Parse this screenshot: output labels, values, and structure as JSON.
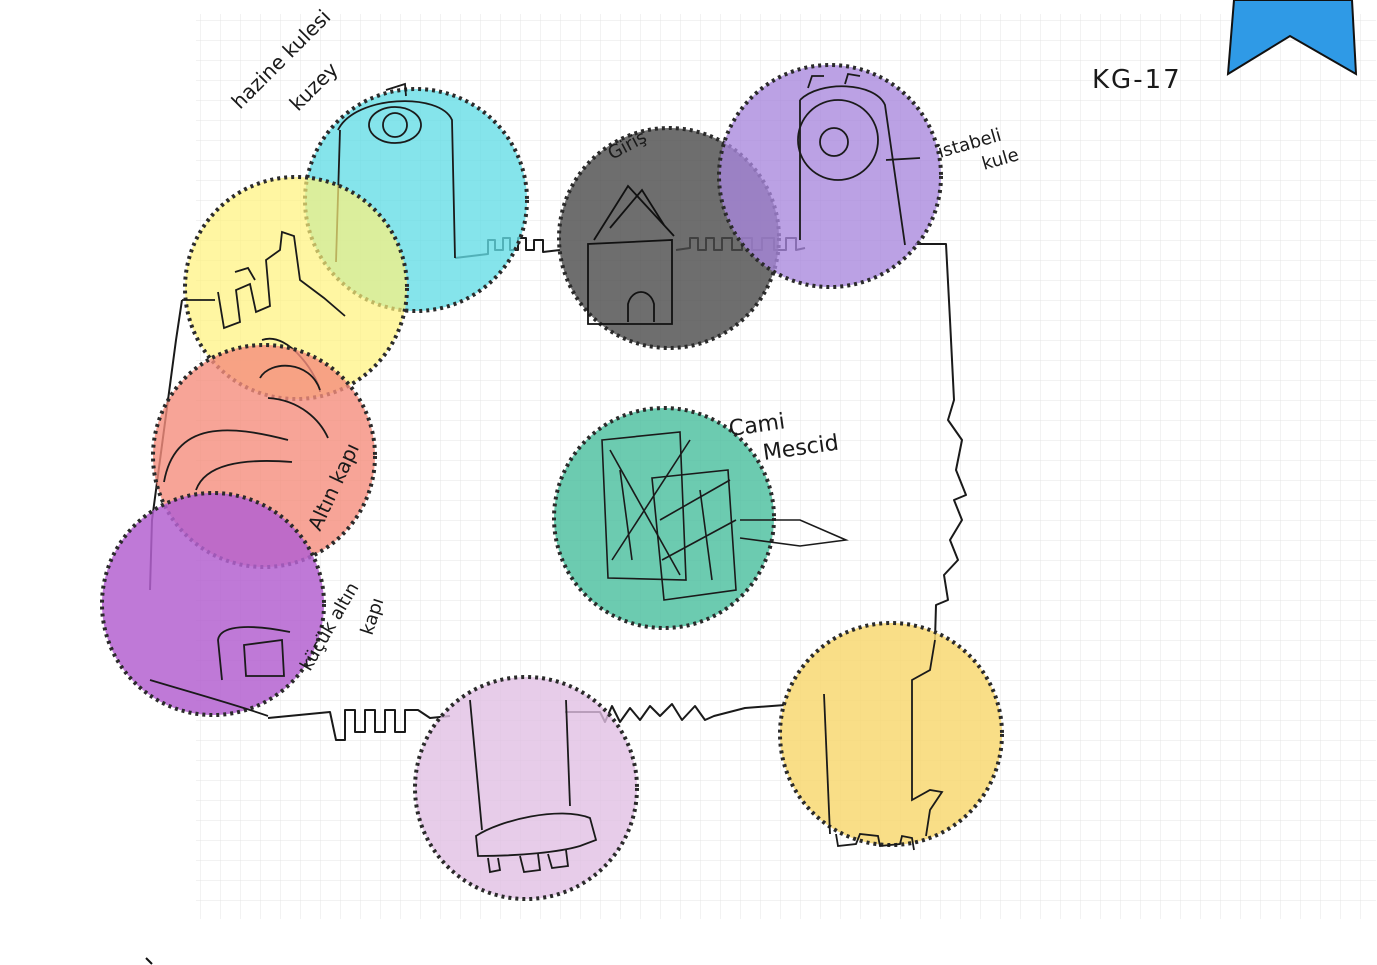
{
  "sheet_code": "KG-17",
  "colors": {
    "paper": "#fbfbfb",
    "grid": "#e4e4e4",
    "ink": "#1a1a1a",
    "bookmark": "#2f9ae6",
    "dot_border": "#2a2a2a"
  },
  "zones": [
    {
      "id": "hazine-kulesi",
      "label": "hazine kulesi kuzey",
      "color": "#63dde6",
      "icon": "round-tower-icon"
    },
    {
      "id": "giris",
      "label": "Giriş",
      "color": "#4a4a4a",
      "icon": "gate-tower-icon"
    },
    {
      "id": "istabeli-kule",
      "label": "istabeli kule",
      "color": "#a887dd",
      "icon": "round-tower-icon"
    },
    {
      "id": "kuzeybati-burcu",
      "label": "",
      "color": "#fff27a",
      "icon": "bastion-icon"
    },
    {
      "id": "altin-kapi",
      "label": "Altın kapı",
      "color": "#f58d7d",
      "icon": "gate-icon"
    },
    {
      "id": "kucuk-altin-kapi",
      "label": "küçük altın kapı",
      "color": "#b462d0",
      "icon": "gate-icon"
    },
    {
      "id": "cami-mescid",
      "label": "Cami Mescid",
      "color": "#4cbf9f",
      "icon": "mosque-icon"
    },
    {
      "id": "guney-kulesi",
      "label": "",
      "color": "#e1bfe3",
      "icon": "square-tower-icon"
    },
    {
      "id": "guneydogu-kulesi",
      "label": "",
      "color": "#f8d872",
      "icon": "square-tower-icon"
    }
  ],
  "annotations": {
    "hazine_line1": "hazine kulesi",
    "hazine_line2": "kuzey",
    "giris": "Giriş",
    "istabeli_line1": "istabeli",
    "istabeli_line2": "kule",
    "cami_line1": "Cami",
    "cami_line2": "Mescid",
    "altin_kapi": "Altın kapı",
    "kucuk_line1": "küçük altın",
    "kucuk_line2": "kapı"
  }
}
